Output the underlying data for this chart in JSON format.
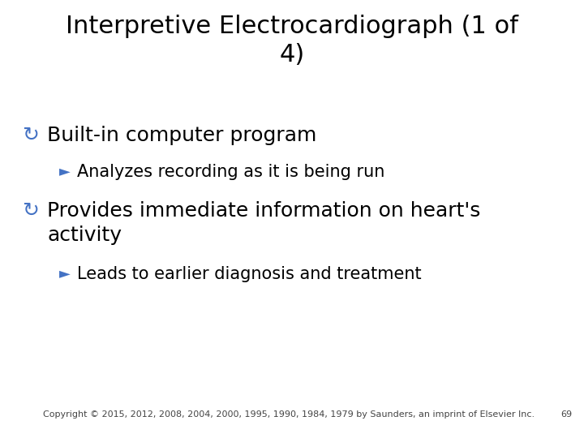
{
  "title": "Interpretive Electrocardiograph (1 of\n4)",
  "title_fontsize": 22,
  "title_color": "#000000",
  "background_color": "#ffffff",
  "bullet_color": "#4472c4",
  "text_color": "#000000",
  "bullet1_text": "Built-in computer program",
  "bullet1_fontsize": 18,
  "sub_bullet1_text": "Analyzes recording as it is being run",
  "sub_bullet1_fontsize": 15,
  "bullet2_text": "Provides immediate information on heart's\nactivity",
  "bullet2_fontsize": 18,
  "sub_bullet2_text": "Leads to earlier diagnosis and treatment",
  "sub_bullet2_fontsize": 15,
  "footer_text": "Copyright © 2015, 2012, 2008, 2004, 2000, 1995, 1990, 1984, 1979 by Saunders, an imprint of Elsevier Inc.",
  "footer_fontsize": 8,
  "page_num": "69",
  "page_num_fontsize": 8,
  "bullet_symbol": "↻",
  "sub_bullet_symbol": "►"
}
